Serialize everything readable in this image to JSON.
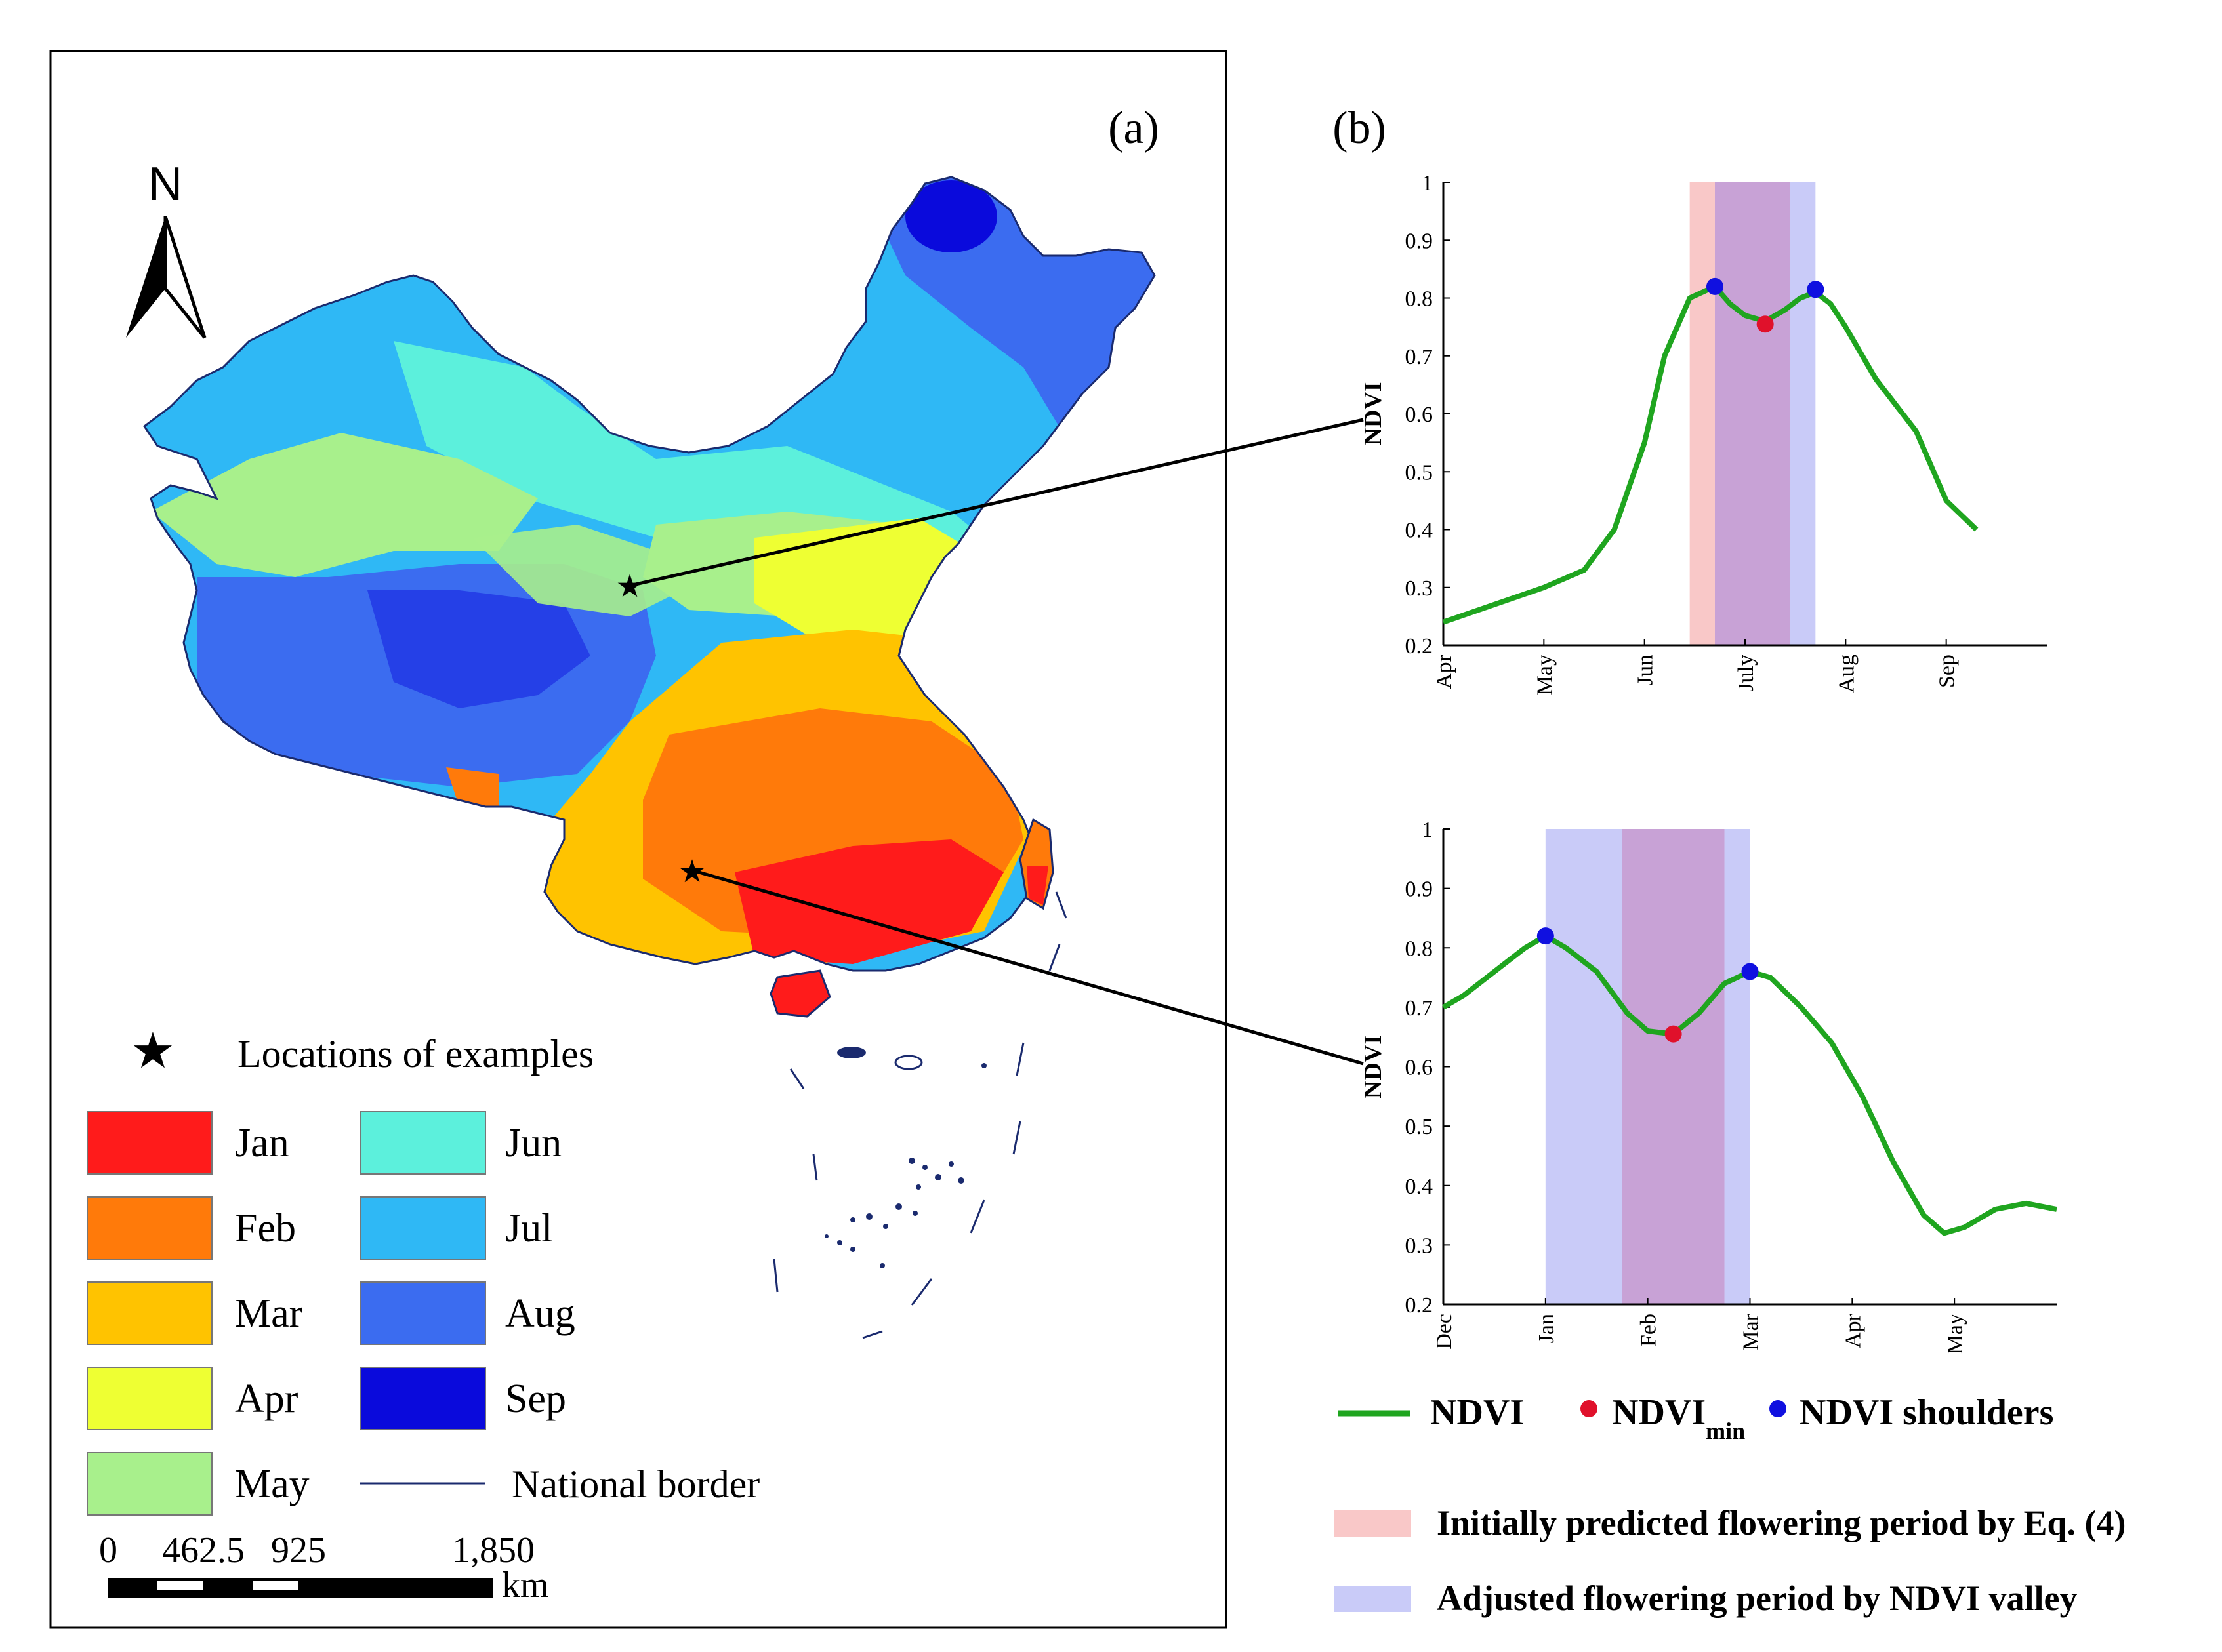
{
  "panel_a": {
    "label": "(a)",
    "north_label": "N",
    "legend": {
      "star_label": "Locations of examples",
      "months": [
        {
          "name": "Jan",
          "color": "#ff1b1b"
        },
        {
          "name": "Feb",
          "color": "#ff7a0a"
        },
        {
          "name": "Mar",
          "color": "#ffc300"
        },
        {
          "name": "Apr",
          "color": "#eeff33"
        },
        {
          "name": "May",
          "color": "#a8f08c"
        },
        {
          "name": "Jun",
          "color": "#5cf0dc"
        },
        {
          "name": "Jul",
          "color": "#2fb8f5"
        },
        {
          "name": "Aug",
          "color": "#3b6cf0"
        },
        {
          "name": "Sep",
          "color": "#0a0adc"
        }
      ],
      "border_label": "National border",
      "border_color": "#1a2a6e"
    },
    "scalebar": {
      "ticks": [
        "0",
        "462.5",
        "925",
        "1,850"
      ],
      "unit": "km"
    }
  },
  "panel_b": {
    "label": "(b)",
    "legend": {
      "ndvi": "NDVI",
      "ndvi_min_base": "NDVI",
      "ndvi_min_sub": "min",
      "ndvi_shoulders": "NDVI shoulders",
      "initial_period": "Initially predicted flowering period by Eq. (4)",
      "adjusted_period": "Adjusted flowering period by NDVI valley"
    }
  },
  "chart_data": [
    {
      "type": "line",
      "ylabel": "NDVI",
      "ylim": [
        0.2,
        1
      ],
      "yticks": [
        "0.2",
        "0.3",
        "0.4",
        "0.5",
        "0.6",
        "0.7",
        "0.8",
        "0.9",
        "1"
      ],
      "xlim": [
        0,
        6
      ],
      "xticks": [
        "Apr",
        "May",
        "Jun",
        "July",
        "Aug",
        "Sep"
      ],
      "initial_band": [
        2.45,
        2.7
      ],
      "overlap_band": [
        2.7,
        3.45
      ],
      "adjusted_band": [
        3.45,
        3.7
      ],
      "series": [
        {
          "name": "NDVI",
          "color": "#1fa51f",
          "x": [
            0,
            0.5,
            1,
            1.4,
            1.7,
            2,
            2.2,
            2.45,
            2.7,
            2.85,
            3.0,
            3.2,
            3.4,
            3.55,
            3.7,
            3.85,
            4,
            4.3,
            4.7,
            5,
            5.3
          ],
          "values": [
            0.24,
            0.27,
            0.3,
            0.33,
            0.4,
            0.55,
            0.7,
            0.8,
            0.82,
            0.79,
            0.77,
            0.76,
            0.78,
            0.8,
            0.81,
            0.79,
            0.75,
            0.66,
            0.57,
            0.45,
            0.4
          ]
        }
      ],
      "min_point": {
        "x": 3.2,
        "y": 0.755
      },
      "shoulders": [
        {
          "x": 2.7,
          "y": 0.82
        },
        {
          "x": 3.7,
          "y": 0.815
        }
      ]
    },
    {
      "type": "line",
      "ylabel": "NDVI",
      "ylim": [
        0.2,
        1
      ],
      "yticks": [
        "0.2",
        "0.3",
        "0.4",
        "0.5",
        "0.6",
        "0.7",
        "0.8",
        "0.9",
        "1"
      ],
      "xlim": [
        0,
        6
      ],
      "xticks": [
        "Dec",
        "Jan",
        "Feb",
        "Mar",
        "Apr",
        "May"
      ],
      "adjusted_band": [
        1.0,
        1.75
      ],
      "overlap_band": [
        1.75,
        2.75
      ],
      "adjusted_band_2": [
        2.75,
        3.0
      ],
      "series": [
        {
          "name": "NDVI",
          "color": "#1fa51f",
          "x": [
            0,
            0.2,
            0.5,
            0.8,
            1.0,
            1.2,
            1.5,
            1.8,
            2.0,
            2.25,
            2.5,
            2.75,
            3.0,
            3.2,
            3.5,
            3.8,
            4.1,
            4.4,
            4.7,
            4.9,
            5.1,
            5.4,
            5.7,
            6.0
          ],
          "values": [
            0.7,
            0.72,
            0.76,
            0.8,
            0.82,
            0.8,
            0.76,
            0.69,
            0.66,
            0.655,
            0.69,
            0.74,
            0.76,
            0.75,
            0.7,
            0.64,
            0.55,
            0.44,
            0.35,
            0.32,
            0.33,
            0.36,
            0.37,
            0.36
          ]
        }
      ],
      "min_point": {
        "x": 2.25,
        "y": 0.655
      },
      "shoulders": [
        {
          "x": 1.0,
          "y": 0.82
        },
        {
          "x": 3.0,
          "y": 0.76
        }
      ]
    }
  ]
}
